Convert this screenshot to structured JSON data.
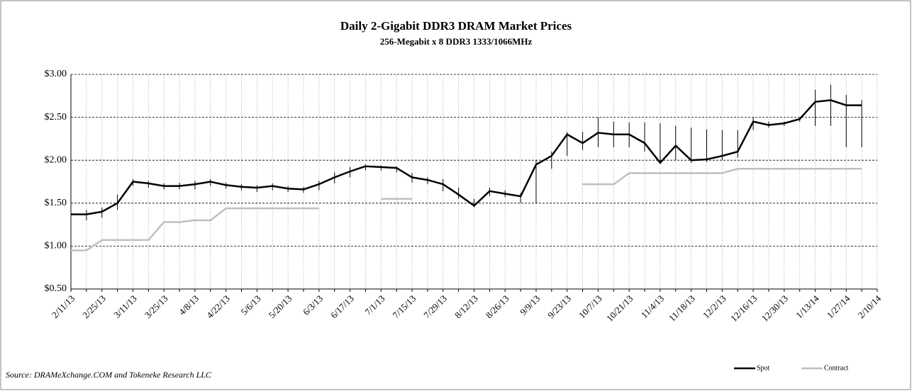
{
  "chart_data": {
    "type": "line",
    "title": "Daily 2-Gigabit DDR3 DRAM Market Prices",
    "subtitle": "256-Megabit x 8 DDR3  1333/1066MHz",
    "source": "Source: DRAMeXchange.COM and Tokeneke Research LLC",
    "categories": [
      "2/11/13",
      null,
      "2/25/13",
      null,
      "3/11/13",
      null,
      "3/25/13",
      null,
      "4/8/13",
      null,
      "4/22/13",
      null,
      "5/6/13",
      null,
      "5/20/13",
      null,
      "6/3/13",
      null,
      "6/17/13",
      null,
      "7/1/13",
      null,
      "7/15/13",
      null,
      "7/29/13",
      null,
      "8/12/13",
      null,
      "8/26/13",
      null,
      "9/9/13",
      null,
      "9/23/13",
      null,
      "10/7/13",
      null,
      "10/21/13",
      null,
      "11/4/13",
      null,
      "11/18/13",
      null,
      "12/2/13",
      null,
      "12/16/13",
      null,
      "12/30/13",
      null,
      "1/13/14",
      null,
      "1/27/14",
      null,
      "2/10/14"
    ],
    "series": [
      {
        "name": "Spot",
        "color": "#000000",
        "values": [
          1.37,
          1.37,
          1.4,
          1.5,
          1.75,
          1.73,
          1.7,
          1.7,
          1.72,
          1.75,
          1.71,
          1.69,
          1.68,
          1.7,
          1.67,
          1.66,
          1.72,
          1.8,
          1.87,
          1.93,
          1.92,
          1.91,
          1.8,
          1.77,
          1.72,
          1.6,
          1.47,
          1.64,
          1.61,
          1.58,
          1.95,
          2.05,
          2.3,
          2.2,
          2.32,
          2.3,
          2.3,
          2.2,
          1.97,
          2.17,
          2.0,
          2.01,
          2.05,
          2.1,
          2.45,
          2.41,
          2.43,
          2.48,
          2.68,
          2.7,
          2.64,
          2.64,
          null
        ],
        "high": [
          1.42,
          1.42,
          1.45,
          1.6,
          1.78,
          1.76,
          1.73,
          1.74,
          1.76,
          1.78,
          1.74,
          1.72,
          1.71,
          1.73,
          1.7,
          1.69,
          1.76,
          1.86,
          1.92,
          1.95,
          1.94,
          1.93,
          1.85,
          1.8,
          1.78,
          1.68,
          1.55,
          1.68,
          1.65,
          1.62,
          2.0,
          2.1,
          2.33,
          2.33,
          2.5,
          2.45,
          2.44,
          2.44,
          2.43,
          2.4,
          2.38,
          2.36,
          2.35,
          2.35,
          2.5,
          2.45,
          2.45,
          2.5,
          2.82,
          2.88,
          2.76,
          2.7,
          null
        ],
        "low": [
          1.27,
          1.3,
          1.33,
          1.42,
          1.7,
          1.68,
          1.66,
          1.66,
          1.66,
          1.7,
          1.67,
          1.65,
          1.63,
          1.65,
          1.63,
          1.62,
          1.65,
          1.73,
          1.8,
          1.88,
          1.88,
          1.86,
          1.74,
          1.72,
          1.64,
          1.55,
          1.45,
          1.58,
          1.57,
          1.5,
          1.5,
          1.9,
          2.05,
          2.12,
          2.15,
          2.15,
          2.15,
          2.1,
          1.96,
          2.0,
          1.97,
          1.98,
          2.0,
          2.03,
          2.35,
          2.38,
          2.4,
          2.45,
          2.4,
          2.4,
          2.15,
          2.15,
          null
        ]
      },
      {
        "name": "Contract",
        "color": "#bfbfbf",
        "values": [
          0.95,
          0.95,
          1.07,
          1.07,
          1.07,
          1.07,
          1.28,
          1.28,
          1.3,
          1.3,
          1.44,
          1.44,
          1.44,
          1.44,
          1.44,
          1.44,
          1.44,
          null,
          null,
          null,
          1.55,
          1.55,
          1.55,
          null,
          null,
          null,
          null,
          null,
          null,
          null,
          null,
          null,
          null,
          1.72,
          1.72,
          1.72,
          1.85,
          1.85,
          1.85,
          1.85,
          1.85,
          1.85,
          1.85,
          1.9,
          1.9,
          1.9,
          1.9,
          1.9,
          1.9,
          1.9,
          1.9,
          1.9,
          null
        ]
      }
    ],
    "ylim": [
      0.5,
      3.0
    ],
    "yticks": [
      {
        "value": 0.5,
        "label": "$0.50"
      },
      {
        "value": 1.0,
        "label": "$1.00"
      },
      {
        "value": 1.5,
        "label": "$1.50"
      },
      {
        "value": 2.0,
        "label": "$2.00"
      },
      {
        "value": 2.5,
        "label": "$2.50"
      },
      {
        "value": 3.0,
        "label": "$3.00"
      }
    ],
    "grid": true,
    "legend": "bottom-right"
  }
}
